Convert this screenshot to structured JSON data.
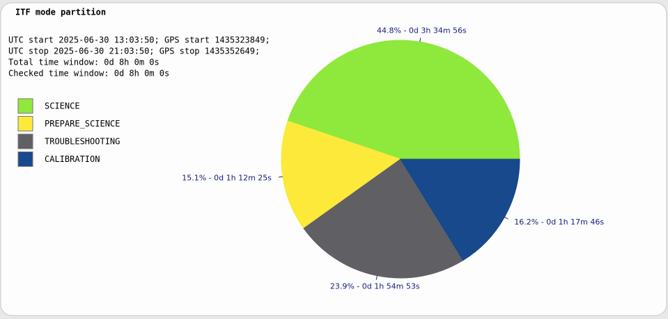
{
  "chart_data": {
    "type": "pie",
    "title": "ITF mode partition",
    "info": [
      "UTC start 2025-06-30 13:03:50; GPS start 1435323849;",
      "UTC stop 2025-06-30 21:03:50; GPS stop 1435352649;",
      "Total time window: 0d 8h 0m 0s",
      "Checked time window: 0d 8h 0m 0s"
    ],
    "categories": [
      "SCIENCE",
      "PREPARE_SCIENCE",
      "TROUBLESHOOTING",
      "CALIBRATION"
    ],
    "values": [
      44.8,
      15.1,
      23.9,
      16.2
    ],
    "value_labels": [
      "44.8% - 0d 3h 34m 56s",
      "15.1% - 0d 1h 12m 25s",
      "23.9% - 0d 1h 54m 53s",
      "16.2% - 0d 1h 17m 46s"
    ],
    "colors": [
      "#8fe83c",
      "#fce93a",
      "#606064",
      "#17498c"
    ]
  }
}
